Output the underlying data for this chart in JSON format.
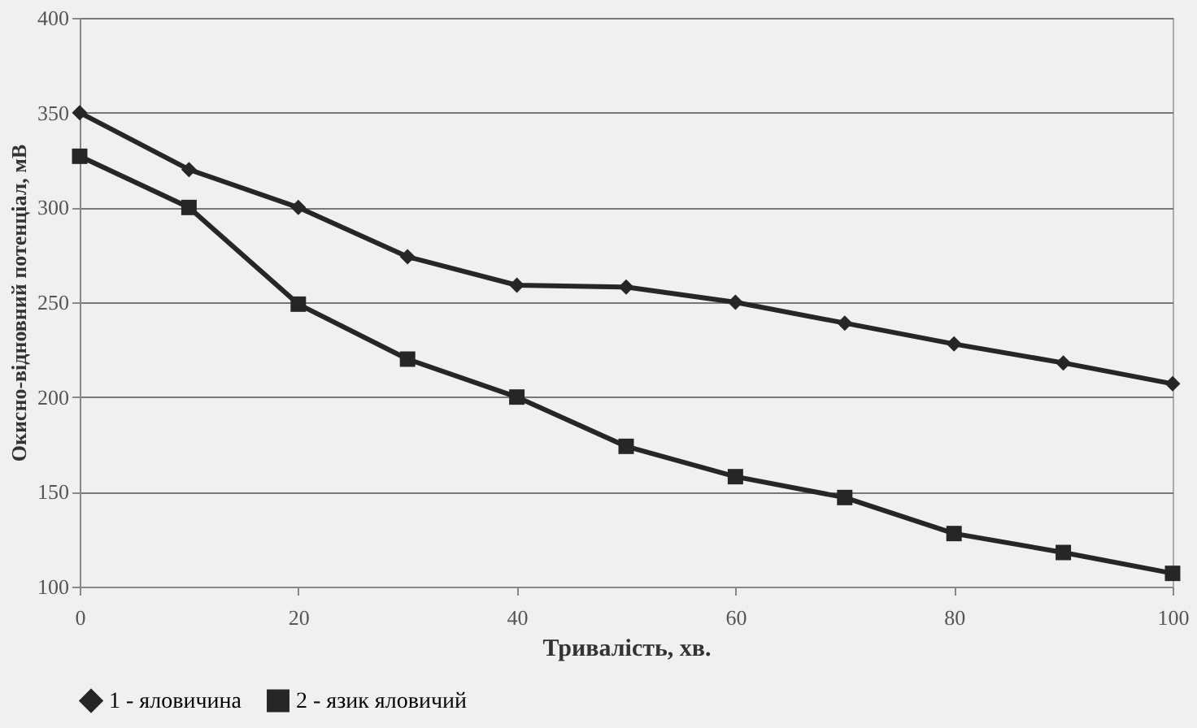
{
  "chart_data": {
    "type": "line",
    "xlabel": "Тривалість, хв.",
    "ylabel": "Окисно-відновний потенціал, мВ",
    "x": [
      0,
      10,
      20,
      30,
      40,
      50,
      60,
      70,
      80,
      90,
      100
    ],
    "series": [
      {
        "name": "1 - яловичина",
        "color": "#262626",
        "marker": "diamond",
        "values": [
          350,
          320,
          300,
          274,
          259,
          258,
          250,
          239,
          228,
          218,
          207
        ]
      },
      {
        "name": "2 - язик яловичий",
        "color": "#262626",
        "marker": "square",
        "values": [
          327,
          300,
          249,
          220,
          200,
          174,
          158,
          147,
          128,
          118,
          107
        ]
      }
    ],
    "xlim": [
      0,
      100
    ],
    "xticks": [
      0,
      20,
      40,
      60,
      80,
      100
    ],
    "ylim": [
      100,
      400
    ],
    "yticks": [
      100,
      150,
      200,
      250,
      300,
      350,
      400
    ],
    "grid": "y",
    "legend": "bottom",
    "line_style": "solid"
  }
}
